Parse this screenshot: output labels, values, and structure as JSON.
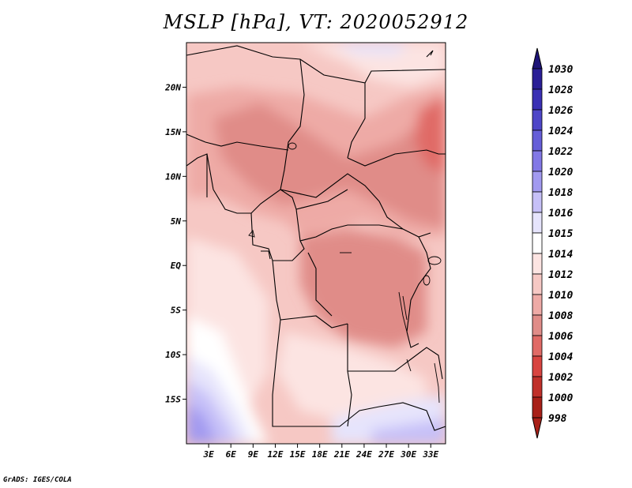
{
  "title": "MSLP [hPa], VT: 2020052912",
  "credit": "GrADS: IGES/COLA",
  "chart_data": {
    "type": "heatmap",
    "variable": "MSLP",
    "units": "hPa",
    "valid_time": "2020052912",
    "lat_range": [
      -20,
      25
    ],
    "lon_range": [
      0,
      35
    ],
    "lat_ticks": [
      {
        "value": 20,
        "label": "20N"
      },
      {
        "value": 15,
        "label": "15N"
      },
      {
        "value": 10,
        "label": "10N"
      },
      {
        "value": 5,
        "label": "5N"
      },
      {
        "value": 0,
        "label": "EQ"
      },
      {
        "value": -5,
        "label": "5S"
      },
      {
        "value": -10,
        "label": "10S"
      },
      {
        "value": -15,
        "label": "15S"
      }
    ],
    "lon_ticks": [
      {
        "value": 3,
        "label": "3E"
      },
      {
        "value": 6,
        "label": "6E"
      },
      {
        "value": 9,
        "label": "9E"
      },
      {
        "value": 12,
        "label": "12E"
      },
      {
        "value": 15,
        "label": "15E"
      },
      {
        "value": 18,
        "label": "18E"
      },
      {
        "value": 21,
        "label": "21E"
      },
      {
        "value": 24,
        "label": "24E"
      },
      {
        "value": 27,
        "label": "27E"
      },
      {
        "value": 30,
        "label": "30E"
      },
      {
        "value": 33,
        "label": "33E"
      }
    ],
    "colorbar": [
      {
        "label": "1030",
        "color": "#1e1478"
      },
      {
        "label": "1028",
        "color": "#2a1e96"
      },
      {
        "label": "1026",
        "color": "#3a30b4"
      },
      {
        "label": "1024",
        "color": "#4e46c8"
      },
      {
        "label": "1022",
        "color": "#665ed8"
      },
      {
        "label": "1020",
        "color": "#8278e6"
      },
      {
        "label": "1018",
        "color": "#a29af0"
      },
      {
        "label": "1016",
        "color": "#c6c0f8"
      },
      {
        "label": "1015",
        "color": "#e6e4fc"
      },
      {
        "label": "1014",
        "color": "#ffffff"
      },
      {
        "label": "1012",
        "color": "#fce4e2"
      },
      {
        "label": "1010",
        "color": "#f6c8c4"
      },
      {
        "label": "1008",
        "color": "#eeaaa6"
      },
      {
        "label": "1006",
        "color": "#e08c88"
      },
      {
        "label": "1004",
        "color": "#e06a66"
      },
      {
        "label": "1002",
        "color": "#d84440"
      },
      {
        "label": "1000",
        "color": "#c0302a"
      },
      {
        "label": "998",
        "color": "#a82018"
      }
    ],
    "colorbar_top_color": "#1e1478",
    "colorbar_bottom_color": "#a82018"
  }
}
